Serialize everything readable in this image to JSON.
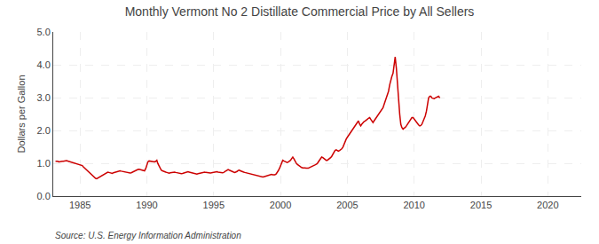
{
  "chart_data": {
    "type": "line",
    "title": "Monthly Vermont No 2 Distillate Commercial Price by All Sellers",
    "ylabel": "Dollars per Gallon",
    "annotations": [
      "Source: U.S. Energy Information Administration"
    ],
    "color": "#cc0000",
    "grid": true,
    "xlim": [
      1983.0,
      2022.5
    ],
    "ylim": [
      0.0,
      5.0
    ],
    "xticks": [
      1985,
      1990,
      1995,
      2000,
      2005,
      2010,
      2015,
      2020
    ],
    "yticks": [
      {
        "value": 0.0,
        "label": "0.0"
      },
      {
        "value": 1.0,
        "label": "1.0"
      },
      {
        "value": 2.0,
        "label": "2.0"
      },
      {
        "value": 3.0,
        "label": "3.0"
      },
      {
        "value": 4.0,
        "label": "4.0"
      },
      {
        "value": 5.0,
        "label": "5.0"
      }
    ],
    "x": [
      1983.17,
      1983.25,
      1983.33,
      1983.42,
      1983.5,
      1983.58,
      1983.67,
      1983.75,
      1983.83,
      1983.92,
      1984.0,
      1984.08,
      1984.17,
      1984.25,
      1984.33,
      1984.42,
      1984.5,
      1984.58,
      1984.67,
      1984.75,
      1984.83,
      1984.92,
      1985.0,
      1985.08,
      1985.17,
      1985.25,
      1985.33,
      1985.42,
      1985.5,
      1985.58,
      1985.67,
      1985.75,
      1985.83,
      1985.92,
      1986.0,
      1986.08,
      1986.17,
      1986.25,
      1986.33,
      1986.42,
      1986.5,
      1986.58,
      1986.67,
      1986.75,
      1986.83,
      1986.92,
      1987.0,
      1987.08,
      1987.17,
      1987.25,
      1987.33,
      1987.42,
      1987.5,
      1987.58,
      1987.67,
      1987.75,
      1987.83,
      1987.92,
      1988.0,
      1988.08,
      1988.17,
      1988.25,
      1988.33,
      1988.42,
      1988.5,
      1988.58,
      1988.67,
      1988.75,
      1988.83,
      1988.92,
      1989.0,
      1989.08,
      1989.17,
      1989.25,
      1989.33,
      1989.42,
      1989.5,
      1989.58,
      1989.67,
      1989.75,
      1989.83,
      1989.92,
      1990.0,
      1990.08,
      1990.17,
      1990.25,
      1990.33,
      1990.42,
      1990.5,
      1990.58,
      1990.67,
      1990.75,
      1990.83,
      1990.92,
      1991.0,
      1991.08,
      1991.17,
      1991.25,
      1991.33,
      1991.42,
      1991.5,
      1991.58,
      1991.67,
      1991.75,
      1991.83,
      1991.92,
      1992.0,
      1992.08,
      1992.17,
      1992.25,
      1992.33,
      1992.42,
      1992.5,
      1992.58,
      1992.67,
      1992.75,
      1992.83,
      1992.92,
      1993.0,
      1993.08,
      1993.17,
      1993.25,
      1993.33,
      1993.42,
      1993.5,
      1993.58,
      1993.67,
      1993.75,
      1993.83,
      1993.92,
      1994.0,
      1994.08,
      1994.17,
      1994.25,
      1994.33,
      1994.42,
      1994.5,
      1994.58,
      1994.67,
      1994.75,
      1994.83,
      1994.92,
      1995.0,
      1995.08,
      1995.17,
      1995.25,
      1995.33,
      1995.42,
      1995.5,
      1995.58,
      1995.67,
      1995.75,
      1995.83,
      1995.92,
      1996.0,
      1996.08,
      1996.17,
      1996.25,
      1996.33,
      1996.42,
      1996.5,
      1996.58,
      1996.67,
      1996.75,
      1996.83,
      1996.92,
      1997.0,
      1997.08,
      1997.17,
      1997.25,
      1997.33,
      1997.42,
      1997.5,
      1997.58,
      1997.67,
      1997.75,
      1997.83,
      1997.92,
      1998.0,
      1998.08,
      1998.17,
      1998.25,
      1998.33,
      1998.42,
      1998.5,
      1998.58,
      1998.67,
      1998.75,
      1998.83,
      1998.92,
      1999.0,
      1999.08,
      1999.17,
      1999.25,
      1999.33,
      1999.42,
      1999.5,
      1999.58,
      1999.67,
      1999.75,
      1999.83,
      1999.92,
      2000.0,
      2000.08,
      2000.17,
      2000.25,
      2000.33,
      2000.42,
      2000.5,
      2000.58,
      2000.67,
      2000.75,
      2000.83,
      2000.92,
      2001.0,
      2001.08,
      2001.17,
      2001.25,
      2001.33,
      2001.42,
      2001.5,
      2001.58,
      2001.67,
      2001.75,
      2001.83,
      2001.92,
      2002.0,
      2002.08,
      2002.17,
      2002.25,
      2002.33,
      2002.42,
      2002.5,
      2002.58,
      2002.67,
      2002.75,
      2002.83,
      2002.92,
      2003.0,
      2003.08,
      2003.17,
      2003.25,
      2003.33,
      2003.42,
      2003.5,
      2003.58,
      2003.67,
      2003.75,
      2003.83,
      2003.92,
      2004.0,
      2004.08,
      2004.17,
      2004.25,
      2004.33,
      2004.42,
      2004.5,
      2004.58,
      2004.67,
      2004.75,
      2004.83,
      2004.92,
      2005.0,
      2005.08,
      2005.17,
      2005.25,
      2005.33,
      2005.42,
      2005.5,
      2005.58,
      2005.67,
      2005.75,
      2005.83,
      2005.92,
      2006.0,
      2006.08,
      2006.17,
      2006.25,
      2006.33,
      2006.42,
      2006.5,
      2006.58,
      2006.67,
      2006.75,
      2006.83,
      2006.92,
      2007.0,
      2007.08,
      2007.17,
      2007.25,
      2007.33,
      2007.42,
      2007.5,
      2007.58,
      2007.67,
      2007.75,
      2007.83,
      2007.92,
      2008.0,
      2008.08,
      2008.17,
      2008.25,
      2008.33,
      2008.42,
      2008.5,
      2008.58,
      2008.67,
      2008.75,
      2008.83,
      2008.92,
      2009.0,
      2009.08,
      2009.17,
      2009.25,
      2009.33,
      2009.42,
      2009.5,
      2009.58,
      2009.67,
      2009.75,
      2009.83,
      2009.92,
      2010.0,
      2010.08,
      2010.17,
      2010.25,
      2010.33,
      2010.42,
      2010.5,
      2010.58,
      2010.67,
      2010.75,
      2010.83,
      2010.92,
      2011.0,
      2011.08,
      2011.17,
      2011.25,
      2011.33,
      2011.42,
      2011.5,
      2011.58,
      2011.67,
      2011.75,
      2011.83,
      2011.92
    ],
    "values": [
      1.06,
      1.07,
      1.06,
      1.04,
      1.05,
      1.05,
      1.06,
      1.06,
      1.07,
      1.08,
      1.08,
      1.07,
      1.06,
      1.05,
      1.03,
      1.02,
      1.01,
      1.0,
      0.99,
      0.98,
      0.97,
      0.97,
      0.96,
      0.95,
      0.93,
      0.89,
      0.86,
      0.83,
      0.79,
      0.76,
      0.73,
      0.7,
      0.66,
      0.62,
      0.59,
      0.56,
      0.54,
      0.53,
      0.55,
      0.57,
      0.59,
      0.62,
      0.63,
      0.64,
      0.66,
      0.69,
      0.71,
      0.73,
      0.72,
      0.71,
      0.7,
      0.69,
      0.71,
      0.72,
      0.74,
      0.75,
      0.76,
      0.78,
      0.77,
      0.76,
      0.75,
      0.74,
      0.73,
      0.72,
      0.71,
      0.7,
      0.69,
      0.7,
      0.71,
      0.73,
      0.75,
      0.77,
      0.78,
      0.79,
      0.81,
      0.82,
      0.81,
      0.79,
      0.77,
      0.76,
      0.77,
      0.84,
      0.94,
      1.04,
      1.07,
      1.06,
      1.05,
      1.04,
      1.04,
      1.04,
      1.06,
      1.09,
      0.99,
      0.91,
      0.84,
      0.79,
      0.77,
      0.75,
      0.74,
      0.73,
      0.72,
      0.71,
      0.7,
      0.71,
      0.72,
      0.73,
      0.74,
      0.73,
      0.72,
      0.71,
      0.7,
      0.69,
      0.69,
      0.68,
      0.69,
      0.7,
      0.72,
      0.74,
      0.75,
      0.74,
      0.73,
      0.72,
      0.71,
      0.7,
      0.69,
      0.68,
      0.67,
      0.67,
      0.68,
      0.69,
      0.7,
      0.71,
      0.72,
      0.73,
      0.73,
      0.72,
      0.71,
      0.7,
      0.69,
      0.7,
      0.71,
      0.72,
      0.73,
      0.74,
      0.75,
      0.74,
      0.73,
      0.72,
      0.71,
      0.7,
      0.71,
      0.72,
      0.74,
      0.76,
      0.79,
      0.81,
      0.79,
      0.77,
      0.75,
      0.74,
      0.73,
      0.72,
      0.73,
      0.75,
      0.78,
      0.79,
      0.77,
      0.75,
      0.74,
      0.73,
      0.72,
      0.71,
      0.7,
      0.69,
      0.68,
      0.67,
      0.66,
      0.65,
      0.64,
      0.63,
      0.62,
      0.61,
      0.6,
      0.59,
      0.58,
      0.57,
      0.58,
      0.59,
      0.6,
      0.61,
      0.62,
      0.63,
      0.64,
      0.65,
      0.66,
      0.65,
      0.64,
      0.65,
      0.67,
      0.71,
      0.77,
      0.84,
      0.94,
      1.04,
      1.09,
      1.07,
      1.05,
      1.04,
      1.02,
      1.04,
      1.06,
      1.09,
      1.14,
      1.19,
      1.14,
      1.07,
      1.01,
      0.97,
      0.94,
      0.91,
      0.89,
      0.87,
      0.86,
      0.87,
      0.86,
      0.85,
      0.84,
      0.85,
      0.87,
      0.89,
      0.91,
      0.92,
      0.93,
      0.95,
      0.97,
      0.99,
      1.04,
      1.09,
      1.14,
      1.19,
      1.17,
      1.14,
      1.11,
      1.09,
      1.09,
      1.11,
      1.14,
      1.17,
      1.21,
      1.27,
      1.34,
      1.39,
      1.41,
      1.39,
      1.37,
      1.39,
      1.41,
      1.44,
      1.49,
      1.59,
      1.69,
      1.74,
      1.79,
      1.84,
      1.89,
      1.94,
      1.99,
      2.04,
      2.09,
      2.14,
      2.19,
      2.24,
      2.29,
      2.19,
      2.14,
      2.19,
      2.24,
      2.27,
      2.29,
      2.31,
      2.34,
      2.37,
      2.39,
      2.34,
      2.29,
      2.24,
      2.29,
      2.34,
      2.39,
      2.44,
      2.49,
      2.54,
      2.59,
      2.64,
      2.69,
      2.79,
      2.89,
      2.99,
      3.09,
      3.19,
      3.39,
      3.54,
      3.64,
      3.74,
      3.99,
      4.24,
      3.89,
      3.54,
      2.99,
      2.49,
      2.19,
      2.09,
      2.04,
      2.07,
      2.09,
      2.14,
      2.19,
      2.24,
      2.29,
      2.34,
      2.39,
      2.39,
      2.34,
      2.29,
      2.24,
      2.19,
      2.17,
      2.14,
      2.15,
      2.19,
      2.27,
      2.34,
      2.44,
      2.59,
      2.79,
      2.99,
      3.04,
      3.04,
      2.99,
      2.97,
      2.97,
      2.99,
      3.01,
      3.04,
      3.04,
      2.99
    ]
  }
}
